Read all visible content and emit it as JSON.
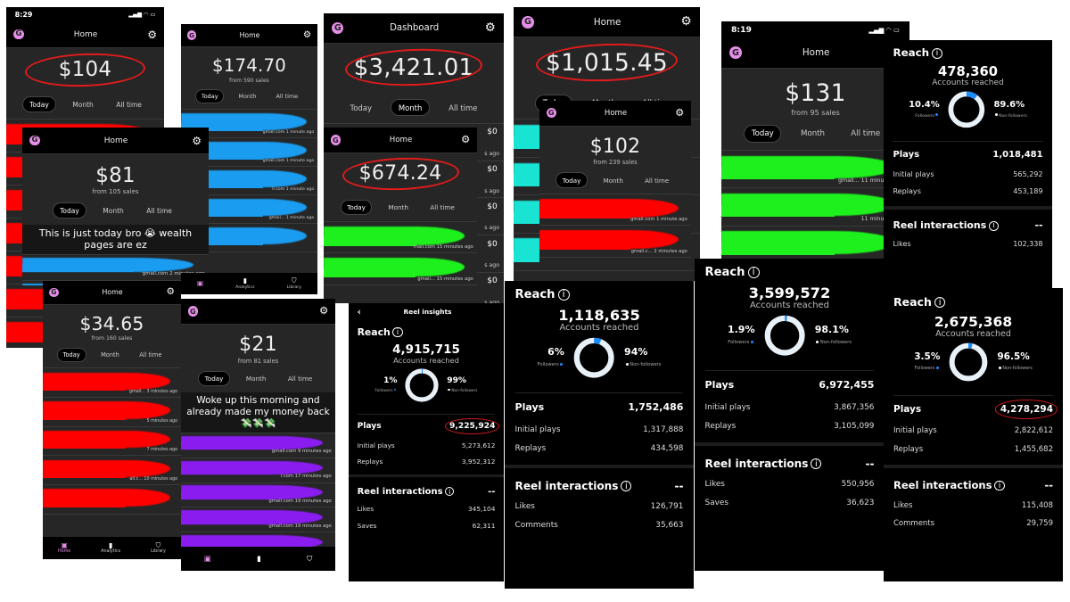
{
  "colors": {
    "logo": "#e58ee8",
    "circle": "#e21b1b",
    "followers_arc": "#1a8cff",
    "donut_base": "#e8f0f8"
  },
  "sales_panels": [
    {
      "time": "8:29",
      "title": "Home",
      "amount": "$104",
      "sub": "",
      "circled": true,
      "active_tab": 0,
      "tabs": [
        "Today",
        "Month",
        "All time"
      ],
      "scribble": "#ff0000",
      "rows": [
        {
          "meta": ""
        },
        {
          "meta": ""
        },
        {
          "meta": ""
        },
        {
          "meta": ""
        },
        {
          "meta": ""
        },
        {
          "meta": ""
        },
        {
          "meta": ""
        }
      ]
    },
    {
      "title": "Home",
      "amount": "$174.70",
      "sub": "from 590 sales",
      "active_tab": 0,
      "tabs": [
        "Today",
        "Month",
        "All time"
      ],
      "scribble": "#1a9cf0",
      "rows": [
        {
          "meta": "gmail.com   1 minute ago"
        },
        {
          "meta": "gmail.com   1 minute ago"
        },
        {
          "meta": "il.com   1 minute ago"
        },
        {
          "meta": "gmail...   1 minute ago"
        },
        {
          "meta": ""
        }
      ],
      "nav": [
        {
          "icon": "home",
          "label": ""
        },
        {
          "icon": "analytics",
          "label": "Analytics"
        },
        {
          "icon": "library",
          "label": "Library"
        }
      ]
    },
    {
      "title": "Dashboard",
      "amount": "$3,421.01",
      "sub": "",
      "circled": true,
      "active_tab": 1,
      "tabs": [
        "Today",
        "Month",
        "All time"
      ],
      "scribble": "",
      "rows": [
        {
          "amount": "$0",
          "meta": "s ago"
        },
        {
          "amount": "$0",
          "meta": "s ago"
        },
        {
          "amount": "$0",
          "meta": "s ago"
        },
        {
          "amount": "$0",
          "meta": "s ago"
        },
        {
          "amount": "$0",
          "meta": "s ago"
        }
      ]
    },
    {
      "title": "Home",
      "amount": "$1,015.45",
      "sub": "",
      "circled": true,
      "active_tab": 0,
      "tabs": [
        "Today",
        "Month",
        "All time"
      ],
      "scribble": "#19e3d3",
      "rows": [
        {
          "meta": ""
        },
        {
          "meta": ""
        },
        {
          "meta": ""
        },
        {
          "meta": ""
        }
      ]
    },
    {
      "time": "8:19",
      "title": "Home",
      "amount": "$131",
      "sub": "from 95 sales",
      "active_tab": 0,
      "tabs": [
        "Today",
        "Month",
        "All time"
      ],
      "scribble": "#1df01d",
      "rows": [
        {
          "meta": "gmail...   11 minutes ago"
        },
        {
          "meta": "11 minutes ago"
        },
        {
          "meta": ""
        }
      ]
    },
    {
      "title": "Home",
      "amount": "$81",
      "sub": "from 105 sales",
      "active_tab": 0,
      "tabs": [
        "Today",
        "Month",
        "All time"
      ],
      "scribble": "#1a9cf0",
      "caption": "This is just today bro 😭 wealth pages are ez",
      "rows": [
        {
          "meta": "gmail.com   2 minutes ago"
        },
        {
          "meta": ""
        }
      ]
    },
    {
      "title": "Home",
      "amount": "$674.24",
      "sub": "",
      "circled": true,
      "active_tab": 0,
      "tabs": [
        "Today",
        "Month",
        "All time"
      ],
      "scribble": "#1df01d",
      "rows": [
        {
          "meta": "mail.com   15 minutes ago"
        },
        {
          "meta": "gmail...   15 minutes ago"
        }
      ]
    },
    {
      "title": "Home",
      "amount": "$102",
      "sub": "from 239 sales",
      "active_tab": 0,
      "tabs": [
        "Today",
        "Month",
        "All time"
      ],
      "scribble": "#ff0000",
      "rows": [
        {
          "meta": "gmail.com   1 minute ago"
        },
        {
          "meta": "gmail.c...   2 minutes ago"
        }
      ]
    },
    {
      "title": "Home",
      "amount": "$34.65",
      "sub": "from 160 sales",
      "active_tab": 0,
      "tabs": [
        "Today",
        "Month",
        "All time"
      ],
      "scribble": "#ff0000",
      "rows": [
        {
          "meta": "gmail...   3 minutes ago"
        },
        {
          "meta": "5 minutes ago"
        },
        {
          "meta": "7 minutes ago"
        },
        {
          "meta": "ail.c...   10 minutes ago"
        },
        {
          "meta": ""
        }
      ],
      "nav": [
        {
          "icon": "home",
          "label": "Home"
        },
        {
          "icon": "analytics",
          "label": "Analytics"
        },
        {
          "icon": "library",
          "label": "Library"
        }
      ]
    },
    {
      "title": "",
      "amount": "$21",
      "sub": "from 81 sales",
      "active_tab": 0,
      "tabs": [
        "Today",
        "Month",
        "All time"
      ],
      "scribble": "#8a1cf0",
      "caption": "Woke up this morning and already made my money back 💸💸💸",
      "rows": [
        {
          "meta": "gmail.com   9 minutes ago"
        },
        {
          "meta": "l.com   17 minutes ago"
        },
        {
          "meta": "gmail.com   19 minutes ago"
        },
        {
          "meta": "gmail.com   19 minutes ago"
        },
        {
          "meta": ""
        }
      ],
      "nav": [
        {
          "icon": "home",
          "label": ""
        },
        {
          "icon": "analytics",
          "label": ""
        },
        {
          "icon": "library",
          "label": ""
        }
      ]
    }
  ],
  "insight_panels": [
    {
      "reach_label": "Reach",
      "accounts": "478,360",
      "accounts_label": "Accounts reached",
      "followers_pct": "10.4%",
      "followers_value": 10.4,
      "followers_label": "Followers",
      "non_pct": "89.6%",
      "non_label": "Non-followers",
      "plays_label": "Plays",
      "plays": "1,018,481",
      "initial_label": "Initial plays",
      "initial": "565,292",
      "replays_label": "Replays",
      "replays": "453,189",
      "interactions_label": "Reel interactions",
      "interactions_value": "--",
      "rows": [
        {
          "label": "Likes",
          "value": "102,338"
        }
      ]
    },
    {
      "header": "Reel insights",
      "reach_label": "Reach",
      "accounts": "4,915,715",
      "accounts_label": "Accounts reached",
      "followers_pct": "1%",
      "followers_value": 1,
      "followers_label": "Followers",
      "non_pct": "99%",
      "non_label": "Non-followers",
      "plays_label": "Plays",
      "plays": "9,225,924",
      "plays_circled": true,
      "initial_label": "Initial plays",
      "initial": "5,273,612",
      "replays_label": "Replays",
      "replays": "3,952,312",
      "interactions_label": "Reel interactions",
      "interactions_value": "--",
      "rows": [
        {
          "label": "Likes",
          "value": "345,104"
        },
        {
          "label": "Saves",
          "value": "62,311"
        }
      ]
    },
    {
      "reach_label": "Reach",
      "accounts": "1,118,635",
      "accounts_label": "Accounts reached",
      "followers_pct": "6%",
      "followers_value": 6,
      "followers_label": "Followers",
      "non_pct": "94%",
      "non_label": "Non-followers",
      "plays_label": "Plays",
      "plays": "1,752,486",
      "initial_label": "Initial plays",
      "initial": "1,317,888",
      "replays_label": "Replays",
      "replays": "434,598",
      "interactions_label": "Reel interactions",
      "interactions_value": "--",
      "rows": [
        {
          "label": "Likes",
          "value": "126,791"
        },
        {
          "label": "Comments",
          "value": "35,663"
        }
      ]
    },
    {
      "reach_label": "Reach",
      "accounts": "3,599,572",
      "accounts_label": "Accounts reached",
      "followers_pct": "1.9%",
      "followers_value": 1.9,
      "followers_label": "Followers",
      "non_pct": "98.1%",
      "non_label": "Non-followers",
      "plays_label": "Plays",
      "plays": "6,972,455",
      "initial_label": "Initial plays",
      "initial": "3,867,356",
      "replays_label": "Replays",
      "replays": "3,105,099",
      "interactions_label": "Reel interactions",
      "interactions_value": "--",
      "rows": [
        {
          "label": "Likes",
          "value": "550,956"
        },
        {
          "label": "Saves",
          "value": "36,623"
        }
      ]
    },
    {
      "reach_label": "Reach",
      "accounts": "2,675,368",
      "accounts_label": "Accounts reached",
      "followers_pct": "3.5%",
      "followers_value": 3.5,
      "followers_label": "Followers",
      "non_pct": "96.5%",
      "non_label": "Non-followers",
      "plays_label": "Plays",
      "plays": "4,278,294",
      "plays_circled": true,
      "initial_label": "Initial plays",
      "initial": "2,822,612",
      "replays_label": "Replays",
      "replays": "1,455,682",
      "interactions_label": "Reel interactions",
      "interactions_value": "--",
      "rows": [
        {
          "label": "Likes",
          "value": "115,408"
        },
        {
          "label": "Comments",
          "value": "29,759"
        }
      ]
    }
  ]
}
